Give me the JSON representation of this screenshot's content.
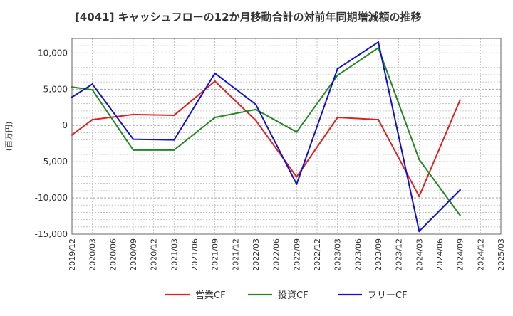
{
  "chart_data": {
    "type": "line",
    "title": "[4041]  キャッシュフローの12か月移動合計の対前年同期増減額の推移",
    "ylabel": "(百万円)",
    "xlabel": "",
    "ylim": [
      -15000,
      12000
    ],
    "yticks": [
      10000,
      5000,
      0,
      -5000,
      -10000,
      -15000
    ],
    "ytick_labels": [
      "10,000",
      "5,000",
      "0",
      "-5,000",
      "-10,000",
      "-15,000"
    ],
    "categories": [
      "2019/12",
      "2020/03",
      "2020/06",
      "2020/09",
      "2020/12",
      "2021/03",
      "2021/06",
      "2021/09",
      "2021/12",
      "2022/03",
      "2022/06",
      "2022/09",
      "2022/12",
      "2023/03",
      "2023/06",
      "2023/09",
      "2023/12",
      "2024/03",
      "2024/06",
      "2024/09",
      "2024/12",
      "2025/03"
    ],
    "grid": true,
    "legend_position": "bottom",
    "series": [
      {
        "name": "営業CF",
        "color": "#dd2222",
        "values": [
          -1300,
          800,
          null,
          1500,
          null,
          1400,
          null,
          6100,
          null,
          700,
          null,
          -7100,
          null,
          1100,
          null,
          800,
          null,
          -9800,
          null,
          3500,
          null,
          null
        ]
      },
      {
        "name": "投資CF",
        "color": "#228822",
        "values": [
          5300,
          4900,
          null,
          -3400,
          null,
          -3400,
          null,
          1100,
          null,
          2200,
          null,
          -900,
          null,
          6900,
          null,
          10700,
          null,
          -4700,
          null,
          -12400,
          null,
          null
        ]
      },
      {
        "name": "フリーCF",
        "color": "#1111cc",
        "values": [
          3900,
          5700,
          null,
          -1900,
          null,
          -2000,
          null,
          7200,
          null,
          2900,
          null,
          -8100,
          null,
          7800,
          null,
          11500,
          null,
          -14600,
          null,
          -8900,
          null,
          null
        ]
      }
    ]
  }
}
